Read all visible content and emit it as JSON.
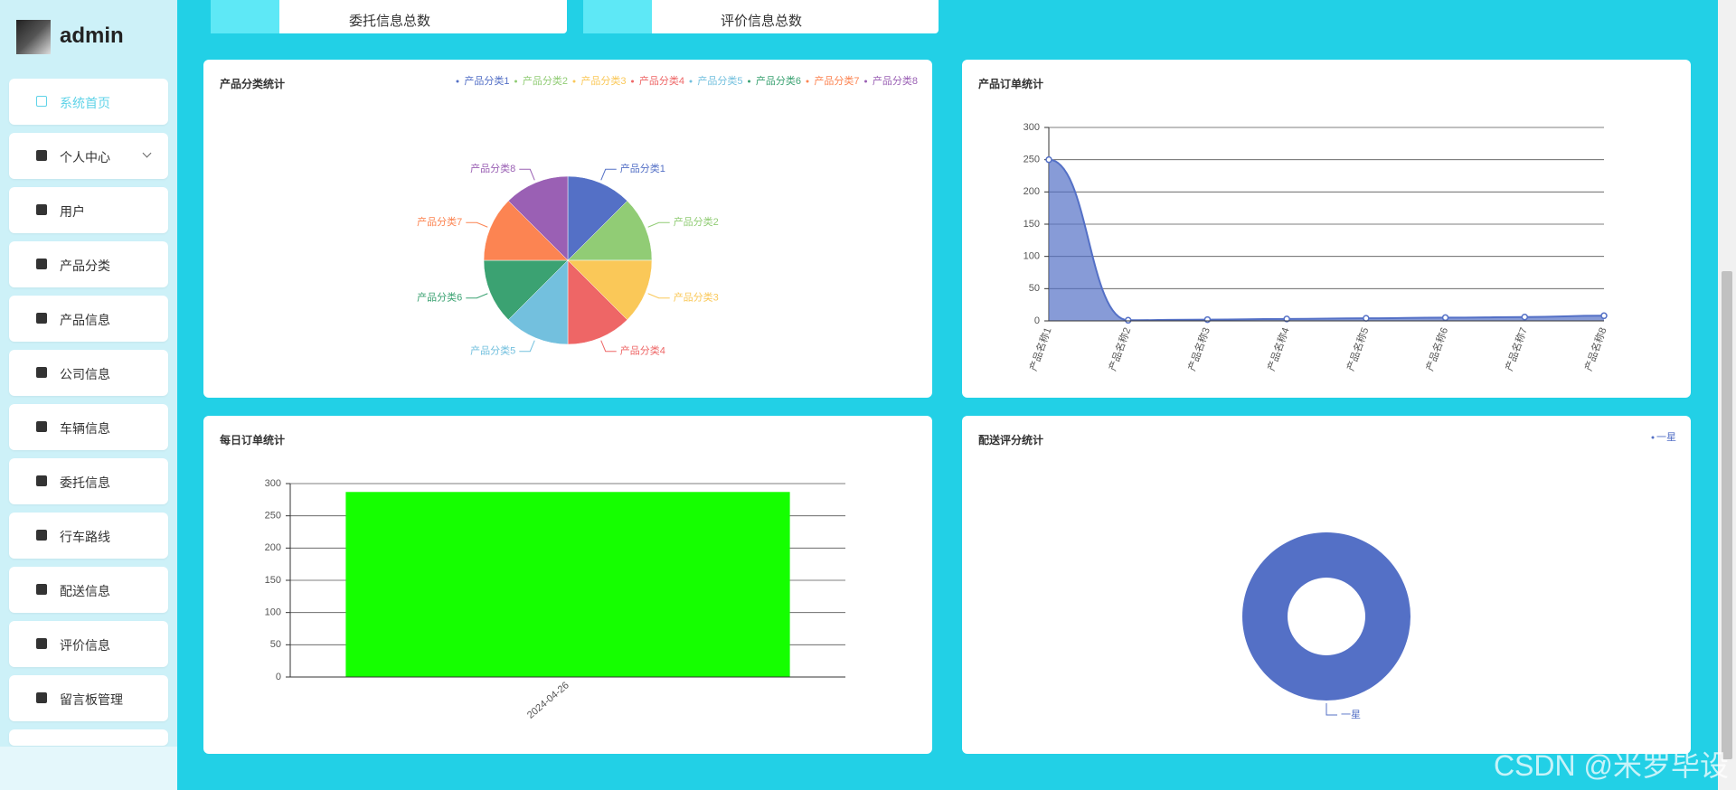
{
  "sidebar": {
    "user": "admin",
    "menu": [
      "系统首页",
      "个人中心",
      "用户",
      "产品分类",
      "产品信息",
      "公司信息",
      "车辆信息",
      "委托信息",
      "行车路线",
      "配送信息",
      "评价信息",
      "留言板管理"
    ]
  },
  "cards": [
    "委托信息总数",
    "评价信息总数"
  ],
  "chart_data": [
    {
      "type": "pie",
      "title": "产品分类统计",
      "categories": [
        "产品分类1",
        "产品分类2",
        "产品分类3",
        "产品分类4",
        "产品分类5",
        "产品分类6",
        "产品分类7",
        "产品分类8"
      ],
      "values": [
        1,
        1,
        1,
        1,
        1,
        1,
        1,
        1
      ],
      "colors": [
        "#5470c6",
        "#91cc75",
        "#fac858",
        "#ee6666",
        "#73c0de",
        "#3ba272",
        "#fc8452",
        "#9a60b4"
      ],
      "legend": "top-right"
    },
    {
      "type": "line",
      "title": "产品订单统计",
      "categories": [
        "产品名称1",
        "产品名称2",
        "产品名称3",
        "产品名称4",
        "产品名称5",
        "产品名称6",
        "产品名称7",
        "产品名称8"
      ],
      "values": [
        250,
        1,
        2,
        3,
        4,
        5,
        6,
        8
      ],
      "color": "#5470c6",
      "area": true,
      "smooth": true,
      "ylim": [
        0,
        300
      ],
      "yticks": [
        0,
        50,
        100,
        150,
        200,
        250,
        300
      ],
      "grid": true
    },
    {
      "type": "bar",
      "title": "每日订单统计",
      "categories": [
        "2024-04-26"
      ],
      "values": [
        287
      ],
      "color": "#15ff00",
      "ylim": [
        0,
        300
      ],
      "yticks": [
        0,
        50,
        100,
        150,
        200,
        250,
        300
      ],
      "grid": true
    },
    {
      "type": "donut",
      "title": "配送评分统计",
      "categories": [
        "一星"
      ],
      "values": [
        1
      ],
      "colors": [
        "#5470c6"
      ],
      "legend": "top-right"
    }
  ],
  "watermark": "CSDN @米罗毕设"
}
